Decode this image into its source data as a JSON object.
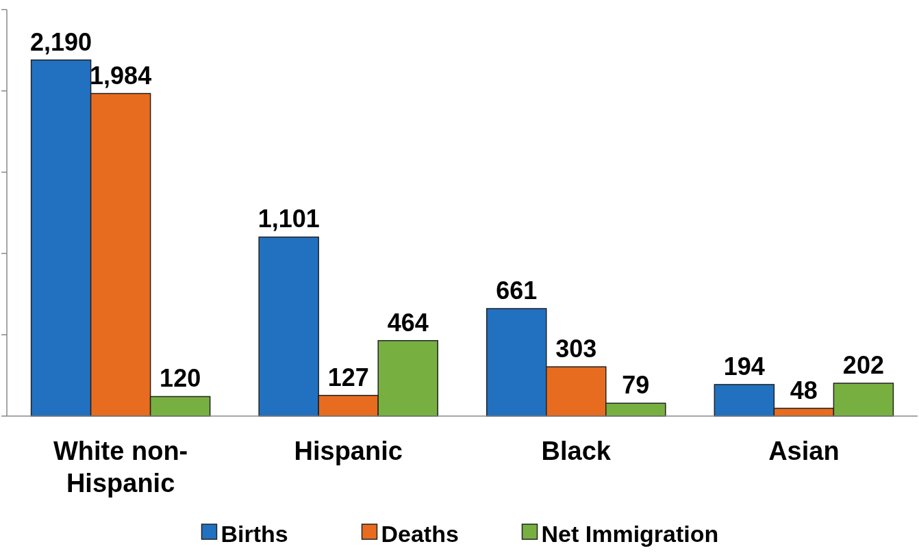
{
  "chart_data": {
    "type": "bar",
    "categories": [
      "White non-Hispanic",
      "Hispanic",
      "Black",
      "Asian"
    ],
    "series": [
      {
        "name": "Births",
        "color": "#2171c0",
        "values": [
          2190,
          1101,
          661,
          194
        ],
        "value_labels": [
          "2,190",
          "1,101",
          "661",
          "194"
        ]
      },
      {
        "name": "Deaths",
        "color": "#e86c1f",
        "values": [
          1984,
          127,
          303,
          48
        ],
        "value_labels": [
          "1,984",
          "127",
          "303",
          "48"
        ]
      },
      {
        "name": "Net Immigration",
        "color": "#77b041",
        "values": [
          120,
          464,
          79,
          202
        ],
        "value_labels": [
          "120",
          "464",
          "79",
          "202"
        ]
      }
    ],
    "ylim": [
      0,
      2500
    ],
    "yticks": [
      {
        "value": 0,
        "label": null
      },
      {
        "value": 500,
        "label": null
      },
      {
        "value": 1000,
        "label": null
      },
      {
        "value": 1500,
        "label": null
      },
      {
        "value": 2000,
        "label": null
      },
      {
        "value": 2500,
        "label": null
      }
    ],
    "tick_labels": "x",
    "legend": "bottom",
    "grid": false
  }
}
